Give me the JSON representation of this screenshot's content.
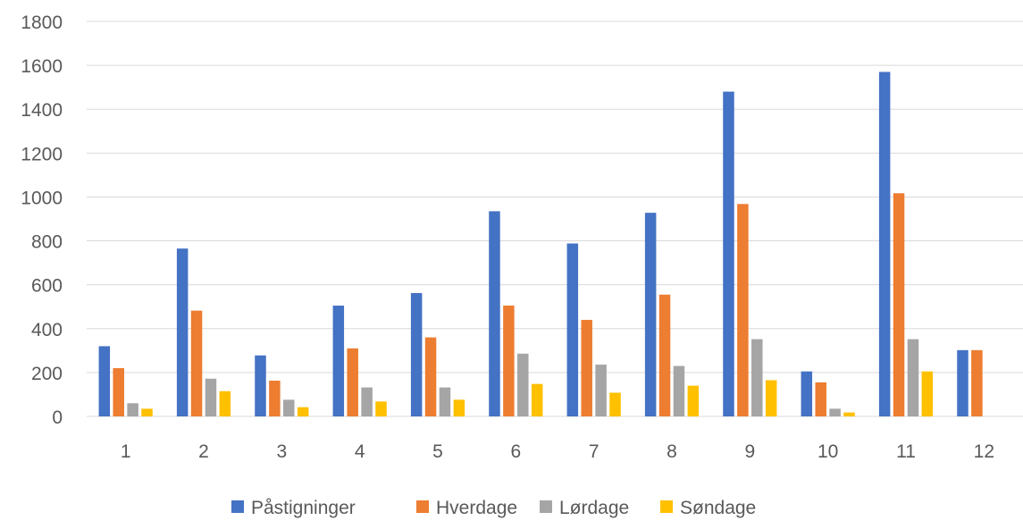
{
  "chart_data": {
    "type": "bar",
    "categories": [
      "1",
      "2",
      "3",
      "4",
      "5",
      "6",
      "7",
      "8",
      "9",
      "10",
      "11",
      "12"
    ],
    "series": [
      {
        "name": "Påstigninger",
        "color": "#4472C4",
        "values": [
          320,
          765,
          278,
          505,
          562,
          935,
          788,
          928,
          1480,
          205,
          1570,
          302
        ]
      },
      {
        "name": "Hverdage",
        "color": "#ED7D31",
        "values": [
          220,
          482,
          163,
          310,
          360,
          505,
          440,
          555,
          968,
          155,
          1017,
          302
        ]
      },
      {
        "name": "Lørdage",
        "color": "#A5A5A5",
        "values": [
          60,
          172,
          76,
          132,
          132,
          286,
          236,
          230,
          352,
          35,
          352,
          0
        ]
      },
      {
        "name": "Søndage",
        "color": "#FFC000",
        "values": [
          35,
          115,
          42,
          68,
          76,
          148,
          108,
          140,
          165,
          18,
          205,
          0
        ]
      }
    ],
    "y_ticks": [
      "0",
      "200",
      "400",
      "600",
      "800",
      "1000",
      "1200",
      "1400",
      "1600",
      "1800"
    ],
    "ylim": [
      0,
      1800
    ],
    "grid": true,
    "legend_position": "bottom",
    "title": "",
    "xlabel": "",
    "ylabel": ""
  }
}
